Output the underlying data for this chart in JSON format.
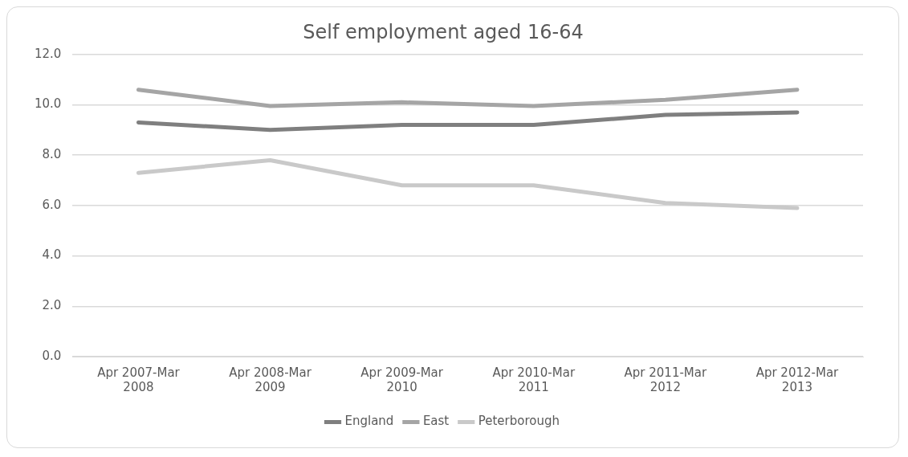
{
  "chart_data": {
    "type": "line",
    "title": "Self employment aged 16-64",
    "categories": [
      "Apr 2007-Mar 2008",
      "Apr 2008-Mar 2009",
      "Apr 2009-Mar 2010",
      "Apr 2010-Mar 2011",
      "Apr 2011-Mar 2012",
      "Apr 2012-Mar 2013"
    ],
    "series": [
      {
        "name": "England",
        "color": "#7f7f7f",
        "values": [
          9.3,
          9.0,
          9.2,
          9.2,
          9.6,
          9.7
        ]
      },
      {
        "name": "East",
        "color": "#a5a5a5",
        "values": [
          10.6,
          9.95,
          10.1,
          9.95,
          10.2,
          10.6
        ]
      },
      {
        "name": "Peterborough",
        "color": "#c9c9c9",
        "values": [
          7.3,
          7.8,
          6.8,
          6.8,
          6.1,
          5.9
        ]
      }
    ],
    "ylim": [
      0,
      12
    ],
    "yticks": [
      {
        "value": 0,
        "label": "0.0"
      },
      {
        "value": 2,
        "label": "2.0"
      },
      {
        "value": 4,
        "label": "4.0"
      },
      {
        "value": 6,
        "label": "6.0"
      },
      {
        "value": 8,
        "label": "8.0"
      },
      {
        "value": 10,
        "label": "10.0"
      },
      {
        "value": 12,
        "label": "12.0"
      }
    ],
    "grid": "y",
    "legend": "bottom",
    "marker": "none",
    "line_style": "solid"
  }
}
